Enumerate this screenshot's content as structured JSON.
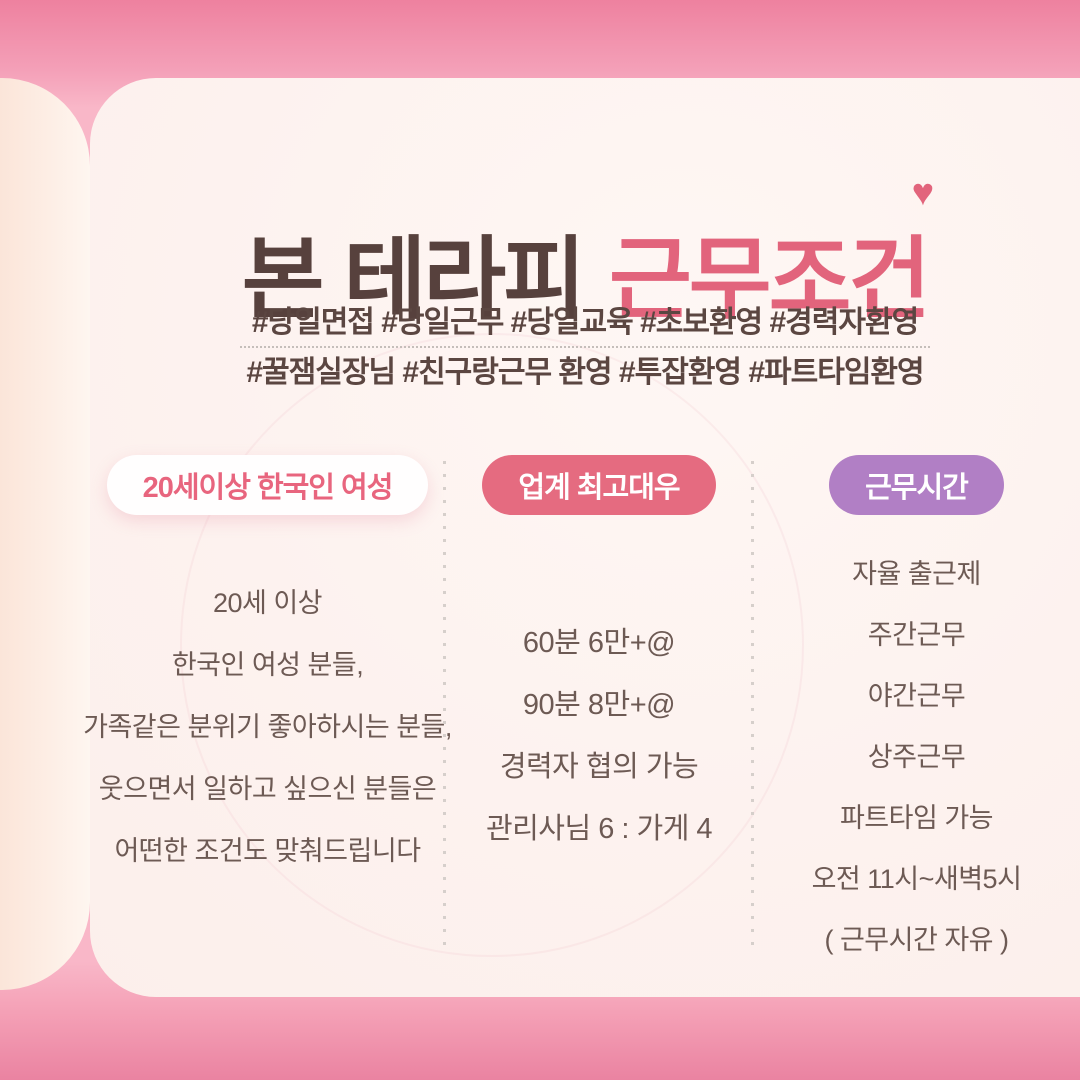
{
  "title": {
    "part1": "본 테라피",
    "part2": "근무조건",
    "heart": "♥"
  },
  "hashtags": {
    "line1": "#당일면접 #당일근무 #당일교육 #초보환영 #경력자환영",
    "line2": "#꿀잼실장님 #친구랑근무 환영 #투잡환영 #파트타임환영"
  },
  "columns": [
    {
      "pill": "20세이상 한국인 여성",
      "lines": [
        "20세 이상",
        "한국인 여성 분들,",
        "가족같은 분위기 좋아하시는 분들,",
        "웃으면서 일하고 싶으신 분들은",
        "어떤한 조건도 맞춰드립니다"
      ]
    },
    {
      "pill": "업계 최고대우",
      "lines": [
        "60분 6만+@",
        "90분 8만+@",
        "경력자 협의 가능",
        "관리사님 6 : 가게 4"
      ]
    },
    {
      "pill": "근무시간",
      "lines": [
        "자율 출근제",
        "주간근무",
        "야간근무",
        "상주근무",
        "파트타임 가능",
        "오전 11시~새벽5시",
        "( 근무시간 자유 )"
      ]
    }
  ],
  "colors": {
    "accent_pink": "#e2647c",
    "title_brown": "#57413d",
    "pill_pink_bg": "#e56b80",
    "pill_purple_bg": "#b17fc5",
    "body_text": "#6d5a54",
    "card_bg": "#fdf2ef",
    "background_pink": "#f9b7c8"
  }
}
